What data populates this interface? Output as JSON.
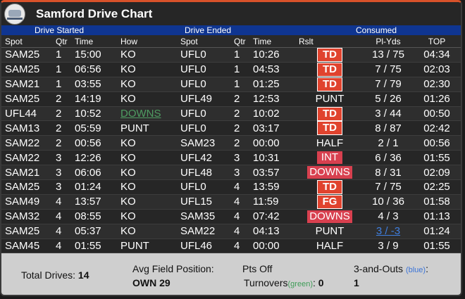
{
  "title": "Samford Drive Chart",
  "groups": {
    "started": "Drive Started",
    "ended": "Drive Ended",
    "consumed": "Consumed"
  },
  "headers": {
    "spot": "Spot",
    "qtr": "Qtr",
    "time": "Time",
    "how": "How",
    "espot": "Spot",
    "eqtr": "Qtr",
    "etime": "Time",
    "rslt": "Rslt",
    "plyds": "Pl-Yds",
    "top": "TOP"
  },
  "drives": [
    {
      "spot": "SAM25",
      "qtr": "1",
      "time": "15:00",
      "how": "KO",
      "espot": "UFL0",
      "eqtr": "1",
      "etime": "10:26",
      "rslt": "TD",
      "plyds": "13 / 75",
      "top": "04:34"
    },
    {
      "spot": "SAM25",
      "qtr": "1",
      "time": "06:56",
      "how": "KO",
      "espot": "UFL0",
      "eqtr": "1",
      "etime": "04:53",
      "rslt": "TD",
      "plyds": "7 / 75",
      "top": "02:03"
    },
    {
      "spot": "SAM21",
      "qtr": "1",
      "time": "03:55",
      "how": "KO",
      "espot": "UFL0",
      "eqtr": "1",
      "etime": "01:25",
      "rslt": "TD",
      "plyds": "7 / 79",
      "top": "02:30"
    },
    {
      "spot": "SAM25",
      "qtr": "2",
      "time": "14:19",
      "how": "KO",
      "espot": "UFL49",
      "eqtr": "2",
      "etime": "12:53",
      "rslt": "PUNT",
      "plyds": "5 / 26",
      "top": "01:26"
    },
    {
      "spot": "UFL44",
      "qtr": "2",
      "time": "10:52",
      "how": "DOWNS",
      "espot": "UFL0",
      "eqtr": "2",
      "etime": "10:02",
      "rslt": "TD",
      "plyds": "3 / 44",
      "top": "00:50"
    },
    {
      "spot": "SAM13",
      "qtr": "2",
      "time": "05:59",
      "how": "PUNT",
      "espot": "UFL0",
      "eqtr": "2",
      "etime": "03:17",
      "rslt": "TD",
      "plyds": "8 / 87",
      "top": "02:42"
    },
    {
      "spot": "SAM22",
      "qtr": "2",
      "time": "00:56",
      "how": "KO",
      "espot": "SAM23",
      "eqtr": "2",
      "etime": "00:00",
      "rslt": "HALF",
      "plyds": "2 / 1",
      "top": "00:56"
    },
    {
      "spot": "SAM22",
      "qtr": "3",
      "time": "12:26",
      "how": "KO",
      "espot": "UFL42",
      "eqtr": "3",
      "etime": "10:31",
      "rslt": "INT",
      "plyds": "6 / 36",
      "top": "01:55"
    },
    {
      "spot": "SAM21",
      "qtr": "3",
      "time": "06:06",
      "how": "KO",
      "espot": "UFL48",
      "eqtr": "3",
      "etime": "03:57",
      "rslt": "DOWNS",
      "plyds": "8 / 31",
      "top": "02:09"
    },
    {
      "spot": "SAM25",
      "qtr": "3",
      "time": "01:24",
      "how": "KO",
      "espot": "UFL0",
      "eqtr": "4",
      "etime": "13:59",
      "rslt": "TD",
      "plyds": "7 / 75",
      "top": "02:25"
    },
    {
      "spot": "SAM49",
      "qtr": "4",
      "time": "13:57",
      "how": "KO",
      "espot": "UFL15",
      "eqtr": "4",
      "etime": "11:59",
      "rslt": "FG",
      "plyds": "10 / 36",
      "top": "01:58"
    },
    {
      "spot": "SAM32",
      "qtr": "4",
      "time": "08:55",
      "how": "KO",
      "espot": "SAM35",
      "eqtr": "4",
      "etime": "07:42",
      "rslt": "DOWNS",
      "plyds": "4 / 3",
      "top": "01:13"
    },
    {
      "spot": "SAM25",
      "qtr": "4",
      "time": "05:37",
      "how": "KO",
      "espot": "SAM22",
      "eqtr": "4",
      "etime": "04:13",
      "rslt": "PUNT",
      "plyds": "3 / -3",
      "top": "01:24"
    },
    {
      "spot": "SAM45",
      "qtr": "4",
      "time": "01:55",
      "how": "PUNT",
      "espot": "UFL46",
      "eqtr": "4",
      "etime": "00:00",
      "rslt": "HALF",
      "plyds": "3 / 9",
      "top": "01:55"
    }
  ],
  "footer": {
    "total_label": "Total Drives:",
    "total_value": "14",
    "avg_label": "Avg Field Position:",
    "avg_value": "OWN 29",
    "pts_off_label": "Pts Off",
    "turnovers_label": "Turnovers",
    "turnovers_green": "(green)",
    "turnovers_colon": ":",
    "turnovers_value": "0",
    "three_outs_label": "3-and-Outs",
    "three_outs_blue": "(blue)",
    "three_outs_colon": ":",
    "three_outs_value": "1"
  }
}
